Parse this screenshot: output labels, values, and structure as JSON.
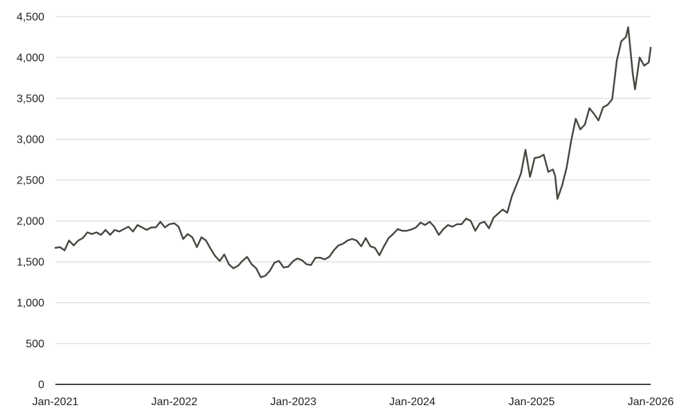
{
  "chart_data": {
    "type": "line",
    "title": "",
    "xlabel": "",
    "ylabel": "",
    "ylim": [
      0,
      4500
    ],
    "y_ticks": [
      0,
      500,
      1000,
      1500,
      2000,
      2500,
      3000,
      3500,
      4000,
      4500
    ],
    "y_tick_labels": [
      "0",
      "500",
      "1,000",
      "1,500",
      "2,000",
      "2,500",
      "3,000",
      "3,500",
      "4,000",
      "4,500"
    ],
    "x_range": [
      "2021-01-01",
      "2026-01-01"
    ],
    "x_ticks": [
      "2021-01-01",
      "2022-01-01",
      "2023-01-01",
      "2024-01-01",
      "2025-01-01",
      "2026-01-01"
    ],
    "x_tick_labels": [
      "Jan-2021",
      "Jan-2022",
      "Jan-2023",
      "Jan-2024",
      "Jan-2025",
      "Jan-2026"
    ],
    "grid": "horizontal",
    "legend": "none",
    "line_color": "#4a4740",
    "series": [
      {
        "points": [
          [
            "2021-01-01",
            1670
          ],
          [
            "2021-01-15",
            1680
          ],
          [
            "2021-01-29",
            1640
          ],
          [
            "2021-02-12",
            1760
          ],
          [
            "2021-02-26",
            1700
          ],
          [
            "2021-03-12",
            1760
          ],
          [
            "2021-03-26",
            1790
          ],
          [
            "2021-04-09",
            1860
          ],
          [
            "2021-04-23",
            1840
          ],
          [
            "2021-05-07",
            1860
          ],
          [
            "2021-05-21",
            1830
          ],
          [
            "2021-06-04",
            1890
          ],
          [
            "2021-06-18",
            1830
          ],
          [
            "2021-07-02",
            1890
          ],
          [
            "2021-07-16",
            1870
          ],
          [
            "2021-07-30",
            1900
          ],
          [
            "2021-08-13",
            1930
          ],
          [
            "2021-08-27",
            1870
          ],
          [
            "2021-09-10",
            1950
          ],
          [
            "2021-09-24",
            1920
          ],
          [
            "2021-10-08",
            1890
          ],
          [
            "2021-10-22",
            1920
          ],
          [
            "2021-11-05",
            1920
          ],
          [
            "2021-11-19",
            1990
          ],
          [
            "2021-12-03",
            1920
          ],
          [
            "2021-12-17",
            1960
          ],
          [
            "2022-01-01",
            1970
          ],
          [
            "2022-01-14",
            1930
          ],
          [
            "2022-01-28",
            1780
          ],
          [
            "2022-02-11",
            1840
          ],
          [
            "2022-02-25",
            1800
          ],
          [
            "2022-03-11",
            1680
          ],
          [
            "2022-03-25",
            1800
          ],
          [
            "2022-04-08",
            1760
          ],
          [
            "2022-04-22",
            1660
          ],
          [
            "2022-05-06",
            1570
          ],
          [
            "2022-05-20",
            1510
          ],
          [
            "2022-06-03",
            1590
          ],
          [
            "2022-06-17",
            1470
          ],
          [
            "2022-07-01",
            1420
          ],
          [
            "2022-07-15",
            1450
          ],
          [
            "2022-07-29",
            1510
          ],
          [
            "2022-08-12",
            1560
          ],
          [
            "2022-08-26",
            1470
          ],
          [
            "2022-09-09",
            1420
          ],
          [
            "2022-09-23",
            1310
          ],
          [
            "2022-10-07",
            1330
          ],
          [
            "2022-10-21",
            1390
          ],
          [
            "2022-11-04",
            1490
          ],
          [
            "2022-11-18",
            1510
          ],
          [
            "2022-12-02",
            1430
          ],
          [
            "2022-12-16",
            1440
          ],
          [
            "2023-01-01",
            1510
          ],
          [
            "2023-01-13",
            1540
          ],
          [
            "2023-01-27",
            1520
          ],
          [
            "2023-02-10",
            1470
          ],
          [
            "2023-02-24",
            1460
          ],
          [
            "2023-03-10",
            1550
          ],
          [
            "2023-03-24",
            1550
          ],
          [
            "2023-04-07",
            1530
          ],
          [
            "2023-04-21",
            1560
          ],
          [
            "2023-05-05",
            1640
          ],
          [
            "2023-05-19",
            1700
          ],
          [
            "2023-06-02",
            1720
          ],
          [
            "2023-06-16",
            1760
          ],
          [
            "2023-06-30",
            1780
          ],
          [
            "2023-07-14",
            1760
          ],
          [
            "2023-07-28",
            1690
          ],
          [
            "2023-08-11",
            1790
          ],
          [
            "2023-08-25",
            1690
          ],
          [
            "2023-09-08",
            1670
          ],
          [
            "2023-09-22",
            1580
          ],
          [
            "2023-10-06",
            1690
          ],
          [
            "2023-10-20",
            1790
          ],
          [
            "2023-11-03",
            1840
          ],
          [
            "2023-11-17",
            1900
          ],
          [
            "2023-12-01",
            1880
          ],
          [
            "2023-12-15",
            1880
          ],
          [
            "2024-01-01",
            1900
          ],
          [
            "2024-01-12",
            1920
          ],
          [
            "2024-01-26",
            1980
          ],
          [
            "2024-02-09",
            1950
          ],
          [
            "2024-02-23",
            1990
          ],
          [
            "2024-03-08",
            1930
          ],
          [
            "2024-03-22",
            1830
          ],
          [
            "2024-04-05",
            1900
          ],
          [
            "2024-04-19",
            1950
          ],
          [
            "2024-05-03",
            1930
          ],
          [
            "2024-05-17",
            1960
          ],
          [
            "2024-05-31",
            1960
          ],
          [
            "2024-06-14",
            2030
          ],
          [
            "2024-06-28",
            2000
          ],
          [
            "2024-07-12",
            1880
          ],
          [
            "2024-07-26",
            1970
          ],
          [
            "2024-08-09",
            1990
          ],
          [
            "2024-08-23",
            1910
          ],
          [
            "2024-09-06",
            2040
          ],
          [
            "2024-09-20",
            2090
          ],
          [
            "2024-10-04",
            2140
          ],
          [
            "2024-10-18",
            2100
          ],
          [
            "2024-11-01",
            2300
          ],
          [
            "2024-11-15",
            2440
          ],
          [
            "2024-11-29",
            2580
          ],
          [
            "2024-12-13",
            2870
          ],
          [
            "2024-12-27",
            2540
          ],
          [
            "2025-01-01",
            2620
          ],
          [
            "2025-01-10",
            2770
          ],
          [
            "2025-01-24",
            2780
          ],
          [
            "2025-02-07",
            2810
          ],
          [
            "2025-02-21",
            2600
          ],
          [
            "2025-03-07",
            2630
          ],
          [
            "2025-03-14",
            2550
          ],
          [
            "2025-03-21",
            2270
          ],
          [
            "2025-04-04",
            2430
          ],
          [
            "2025-04-18",
            2650
          ],
          [
            "2025-05-02",
            2980
          ],
          [
            "2025-05-16",
            3250
          ],
          [
            "2025-05-30",
            3120
          ],
          [
            "2025-06-13",
            3180
          ],
          [
            "2025-06-27",
            3380
          ],
          [
            "2025-07-11",
            3310
          ],
          [
            "2025-07-25",
            3230
          ],
          [
            "2025-08-08",
            3390
          ],
          [
            "2025-08-22",
            3420
          ],
          [
            "2025-09-05",
            3490
          ],
          [
            "2025-09-19",
            3960
          ],
          [
            "2025-10-03",
            4200
          ],
          [
            "2025-10-17",
            4250
          ],
          [
            "2025-10-24",
            4370
          ],
          [
            "2025-11-07",
            3800
          ],
          [
            "2025-11-14",
            3610
          ],
          [
            "2025-11-28",
            4000
          ],
          [
            "2025-12-12",
            3900
          ],
          [
            "2025-12-26",
            3940
          ],
          [
            "2026-01-01",
            4120
          ]
        ]
      }
    ]
  }
}
